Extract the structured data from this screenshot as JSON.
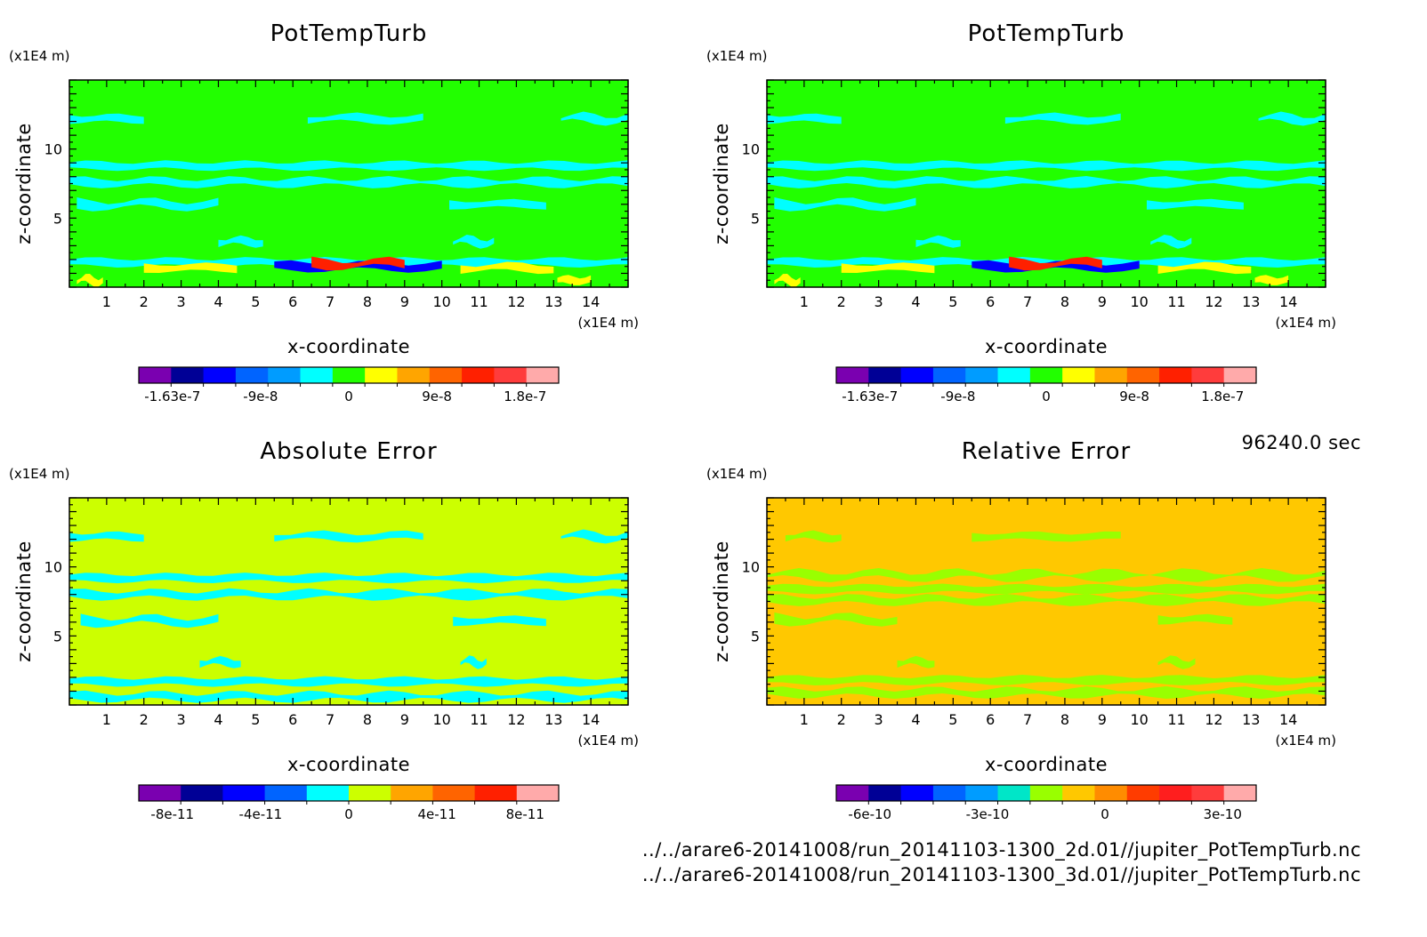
{
  "time_label": "96240.0 sec",
  "footer": {
    "file1": "../../arare6-20141008/run_20141103-1300_2d.01//jupiter_PotTempTurb.nc",
    "file2": "../../arare6-20141008/run_20141103-1300_3d.01//jupiter_PotTempTurb.nc"
  },
  "chart_data": [
    {
      "type": "heatmap",
      "title": "PotTempTurb",
      "xlabel": "x-coordinate",
      "ylabel": "z-coordinate",
      "x_unit": "(x1E4 m)",
      "y_unit": "(x1E4 m)",
      "xlim": [
        0,
        15
      ],
      "ylim": [
        0,
        15
      ],
      "x_ticks": [
        1,
        2,
        3,
        4,
        5,
        6,
        7,
        8,
        9,
        10,
        11,
        12,
        13,
        14
      ],
      "y_ticks": [
        5,
        10
      ],
      "background": "#22ff00",
      "colorbar": {
        "colors": [
          "#7a00b0",
          "#000096",
          "#0000ff",
          "#0064ff",
          "#009cff",
          "#00ffff",
          "#22ff00",
          "#ffff00",
          "#ffa500",
          "#ff6400",
          "#ff2000",
          "#ff3c3c",
          "#ffaaaa"
        ],
        "labels": [
          "-1.63e-7",
          "-9e-8",
          "0",
          "9e-8",
          "1.8e-7"
        ]
      },
      "features": [
        {
          "z": 12.2,
          "x0": 0.0,
          "x1": 2.0,
          "color": "#00ffff"
        },
        {
          "z": 12.2,
          "x0": 6.4,
          "x1": 9.5,
          "color": "#00ffff"
        },
        {
          "z": 12.2,
          "x0": 13.2,
          "x1": 15.0,
          "color": "#00ffff"
        },
        {
          "z": 8.8,
          "x0": 0.0,
          "x1": 15.0,
          "color": "#00ffff"
        },
        {
          "z": 7.6,
          "x0": 0.0,
          "x1": 15.0,
          "color": "#00ffff"
        },
        {
          "z": 6.0,
          "x0": 0.2,
          "x1": 4.0,
          "color": "#00ffff"
        },
        {
          "z": 6.0,
          "x0": 10.2,
          "x1": 12.8,
          "color": "#00ffff"
        },
        {
          "z": 3.3,
          "x0": 4.0,
          "x1": 5.2,
          "color": "#00ffff"
        },
        {
          "z": 3.3,
          "x0": 10.3,
          "x1": 11.4,
          "color": "#00ffff"
        },
        {
          "z": 1.8,
          "x0": 0.0,
          "x1": 15.0,
          "color": "#00ffff"
        },
        {
          "z": 1.5,
          "x0": 5.5,
          "x1": 10.0,
          "color": "#0000ff"
        },
        {
          "z": 1.7,
          "x0": 6.5,
          "x1": 9.0,
          "color": "#ff2000"
        },
        {
          "z": 1.4,
          "x0": 2.0,
          "x1": 4.5,
          "color": "#ffff00"
        },
        {
          "z": 1.4,
          "x0": 10.5,
          "x1": 13.0,
          "color": "#ffff00"
        },
        {
          "z": 0.5,
          "x0": 0.2,
          "x1": 0.9,
          "color": "#ffff00"
        },
        {
          "z": 0.5,
          "x0": 13.1,
          "x1": 14.0,
          "color": "#ffff00"
        }
      ]
    },
    {
      "type": "heatmap",
      "title": "PotTempTurb",
      "xlabel": "x-coordinate",
      "ylabel": "z-coordinate",
      "x_unit": "(x1E4 m)",
      "y_unit": "(x1E4 m)",
      "xlim": [
        0,
        15
      ],
      "ylim": [
        0,
        15
      ],
      "x_ticks": [
        1,
        2,
        3,
        4,
        5,
        6,
        7,
        8,
        9,
        10,
        11,
        12,
        13,
        14
      ],
      "y_ticks": [
        5,
        10
      ],
      "background": "#22ff00",
      "colorbar": {
        "colors": [
          "#7a00b0",
          "#000096",
          "#0000ff",
          "#0064ff",
          "#009cff",
          "#00ffff",
          "#22ff00",
          "#ffff00",
          "#ffa500",
          "#ff6400",
          "#ff2000",
          "#ff3c3c",
          "#ffaaaa"
        ],
        "labels": [
          "-1.63e-7",
          "-9e-8",
          "0",
          "9e-8",
          "1.8e-7"
        ]
      },
      "features": [
        {
          "z": 12.2,
          "x0": 0.0,
          "x1": 2.0,
          "color": "#00ffff"
        },
        {
          "z": 12.2,
          "x0": 6.4,
          "x1": 9.5,
          "color": "#00ffff"
        },
        {
          "z": 12.2,
          "x0": 13.2,
          "x1": 15.0,
          "color": "#00ffff"
        },
        {
          "z": 8.8,
          "x0": 0.0,
          "x1": 15.0,
          "color": "#00ffff"
        },
        {
          "z": 7.6,
          "x0": 0.0,
          "x1": 15.0,
          "color": "#00ffff"
        },
        {
          "z": 6.0,
          "x0": 0.2,
          "x1": 4.0,
          "color": "#00ffff"
        },
        {
          "z": 6.0,
          "x0": 10.2,
          "x1": 12.8,
          "color": "#00ffff"
        },
        {
          "z": 3.3,
          "x0": 4.0,
          "x1": 5.2,
          "color": "#00ffff"
        },
        {
          "z": 3.3,
          "x0": 10.3,
          "x1": 11.4,
          "color": "#00ffff"
        },
        {
          "z": 1.8,
          "x0": 0.0,
          "x1": 15.0,
          "color": "#00ffff"
        },
        {
          "z": 1.5,
          "x0": 5.5,
          "x1": 10.0,
          "color": "#0000ff"
        },
        {
          "z": 1.7,
          "x0": 6.5,
          "x1": 9.0,
          "color": "#ff2000"
        },
        {
          "z": 1.4,
          "x0": 2.0,
          "x1": 4.5,
          "color": "#ffff00"
        },
        {
          "z": 1.4,
          "x0": 10.5,
          "x1": 13.0,
          "color": "#ffff00"
        },
        {
          "z": 0.5,
          "x0": 0.2,
          "x1": 0.9,
          "color": "#ffff00"
        },
        {
          "z": 0.5,
          "x0": 13.1,
          "x1": 14.0,
          "color": "#ffff00"
        }
      ]
    },
    {
      "type": "heatmap",
      "title": "Absolute Error",
      "xlabel": "x-coordinate",
      "ylabel": "z-coordinate",
      "x_unit": "(x1E4 m)",
      "y_unit": "(x1E4 m)",
      "xlim": [
        0,
        15
      ],
      "ylim": [
        0,
        15
      ],
      "x_ticks": [
        1,
        2,
        3,
        4,
        5,
        6,
        7,
        8,
        9,
        10,
        11,
        12,
        13,
        14
      ],
      "y_ticks": [
        5,
        10
      ],
      "background": "#ccff00",
      "colorbar": {
        "colors": [
          "#7a00b0",
          "#000096",
          "#0000ff",
          "#0064ff",
          "#00ffff",
          "#ccff00",
          "#ffa500",
          "#ff6400",
          "#ff2000",
          "#ffaaaa"
        ],
        "labels": [
          "-8e-11",
          "-4e-11",
          "0",
          "4e-11",
          "8e-11"
        ]
      },
      "features": [
        {
          "z": 12.2,
          "x0": 0.0,
          "x1": 2.0,
          "color": "#00ffff"
        },
        {
          "z": 12.2,
          "x0": 5.5,
          "x1": 9.5,
          "color": "#00ffff"
        },
        {
          "z": 12.2,
          "x0": 13.2,
          "x1": 15.0,
          "color": "#00ffff"
        },
        {
          "z": 9.2,
          "x0": 0.0,
          "x1": 15.0,
          "color": "#00ffff"
        },
        {
          "z": 8.0,
          "x0": 0.0,
          "x1": 15.0,
          "color": "#00ffff"
        },
        {
          "z": 6.1,
          "x0": 0.3,
          "x1": 4.0,
          "color": "#00ffff"
        },
        {
          "z": 6.1,
          "x0": 10.3,
          "x1": 12.8,
          "color": "#00ffff"
        },
        {
          "z": 3.1,
          "x0": 3.5,
          "x1": 4.6,
          "color": "#00ffff"
        },
        {
          "z": 3.1,
          "x0": 10.5,
          "x1": 11.2,
          "color": "#00ffff"
        },
        {
          "z": 1.7,
          "x0": 0.0,
          "x1": 15.0,
          "color": "#00ffff"
        },
        {
          "z": 0.6,
          "x0": 0.0,
          "x1": 15.0,
          "color": "#00ffff"
        }
      ]
    },
    {
      "type": "heatmap",
      "title": "Relative Error",
      "xlabel": "x-coordinate",
      "ylabel": "z-coordinate",
      "x_unit": "(x1E4 m)",
      "y_unit": "(x1E4 m)",
      "xlim": [
        0,
        15
      ],
      "ylim": [
        0,
        15
      ],
      "x_ticks": [
        1,
        2,
        3,
        4,
        5,
        6,
        7,
        8,
        9,
        10,
        11,
        12,
        13,
        14
      ],
      "y_ticks": [
        5,
        10
      ],
      "background": "#ffc800",
      "colorbar": {
        "colors": [
          "#7a00b0",
          "#000096",
          "#0000ff",
          "#0064ff",
          "#009cff",
          "#00e6c8",
          "#99ff00",
          "#ffc800",
          "#ff8c00",
          "#ff3c00",
          "#ff1e1e",
          "#ff3c3c",
          "#ffaaaa"
        ],
        "labels": [
          "-6e-10",
          "-3e-10",
          "0",
          "3e-10"
        ]
      },
      "features": [
        {
          "z": 12.2,
          "x0": 5.5,
          "x1": 9.5,
          "color": "#99ff00"
        },
        {
          "z": 12.2,
          "x0": 0.5,
          "x1": 2.0,
          "color": "#99ff00"
        },
        {
          "z": 9.4,
          "x0": 0.0,
          "x1": 15.0,
          "color": "#99ff00"
        },
        {
          "z": 8.4,
          "x0": 0.0,
          "x1": 15.0,
          "color": "#99ff00"
        },
        {
          "z": 7.6,
          "x0": 0.0,
          "x1": 15.0,
          "color": "#99ff00"
        },
        {
          "z": 6.2,
          "x0": 0.2,
          "x1": 3.5,
          "color": "#99ff00"
        },
        {
          "z": 6.2,
          "x0": 10.5,
          "x1": 12.5,
          "color": "#99ff00"
        },
        {
          "z": 3.1,
          "x0": 3.5,
          "x1": 4.5,
          "color": "#99ff00"
        },
        {
          "z": 3.1,
          "x0": 10.5,
          "x1": 11.5,
          "color": "#99ff00"
        },
        {
          "z": 1.8,
          "x0": 0.0,
          "x1": 15.0,
          "color": "#99ff00"
        },
        {
          "z": 0.9,
          "x0": 0.0,
          "x1": 15.0,
          "color": "#99ff00"
        }
      ]
    }
  ]
}
